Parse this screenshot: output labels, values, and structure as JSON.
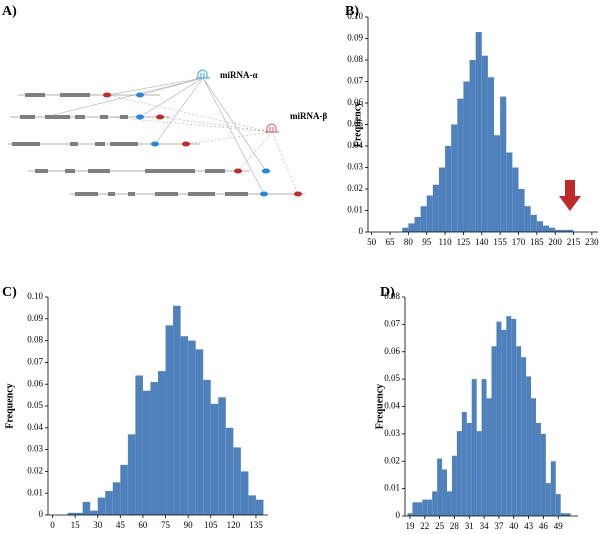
{
  "diagram": {
    "panel_label": "A)",
    "labels": [
      "miRNA-α",
      "miRNA-β"
    ]
  },
  "chart_data": [
    {
      "type": "histogram",
      "panel_label": "B)",
      "y_label": "Frequency",
      "color": "#4f81bd",
      "bins": [
        75,
        80,
        85,
        90,
        95,
        100,
        105,
        110,
        115,
        120,
        125,
        130,
        135,
        140,
        145,
        150,
        155,
        160,
        165,
        170,
        175,
        180,
        185,
        190,
        195,
        200,
        205,
        210,
        215
      ],
      "values": [
        0.002,
        0.004,
        0.007,
        0.012,
        0.017,
        0.022,
        0.03,
        0.04,
        0.05,
        0.062,
        0.07,
        0.08,
        0.093,
        0.082,
        0.072,
        0.045,
        0.063,
        0.037,
        0.03,
        0.02,
        0.012,
        0.008,
        0.005,
        0.003,
        0.002,
        0.001,
        0.001,
        0.001
      ],
      "xlim": [
        47,
        235
      ],
      "xticks": [
        50,
        65,
        80,
        95,
        110,
        125,
        140,
        155,
        170,
        185,
        200,
        215,
        230
      ],
      "ylim": [
        0,
        0.1
      ],
      "yticks": [
        0,
        0.01,
        0.02,
        0.03,
        0.04,
        0.05,
        0.06,
        0.07,
        0.08,
        0.09,
        {
          "value": 0.1,
          "label": "0.10"
        }
      ]
    },
    {
      "type": "histogram",
      "panel_label": "C)",
      "y_label": "Frequency",
      "color": "#4f81bd",
      "bins": [
        10,
        15,
        20,
        25,
        30,
        35,
        40,
        45,
        50,
        55,
        60,
        65,
        70,
        75,
        80,
        85,
        90,
        95,
        100,
        105,
        110,
        115,
        120,
        125,
        130,
        135,
        140
      ],
      "values": [
        0.001,
        0.001,
        0.006,
        0.002,
        0.008,
        0.011,
        0.015,
        0.023,
        0.037,
        0.064,
        0.057,
        0.061,
        0.066,
        0.087,
        0.096,
        0.082,
        0.08,
        0.076,
        0.062,
        0.051,
        0.054,
        0.04,
        0.031,
        0.02,
        0.009,
        0.007
      ],
      "xlim": [
        -3,
        143
      ],
      "xticks": [
        0,
        15,
        30,
        45,
        60,
        75,
        90,
        105,
        120,
        135
      ],
      "ylim": [
        0,
        0.1
      ],
      "yticks": [
        0,
        0.01,
        0.02,
        0.03,
        0.04,
        0.05,
        0.06,
        0.07,
        0.08,
        0.09,
        {
          "value": 0.1,
          "label": "0.10"
        }
      ]
    },
    {
      "type": "histogram",
      "panel_label": "D)",
      "y_label": "Frequency",
      "color": "#4f81bd",
      "bins": [
        18.5,
        19.5,
        20.5,
        21.5,
        22.5,
        23.5,
        24.5,
        25.5,
        26.5,
        27.5,
        28.5,
        29.5,
        30.5,
        31.5,
        32.5,
        33.5,
        34.5,
        35.5,
        36.5,
        37.5,
        38.5,
        39.5,
        40.5,
        41.5,
        42.5,
        43.5,
        44.5,
        45.5,
        46.5,
        47.5,
        48.5,
        49.5,
        50.5,
        51.5
      ],
      "values": [
        0.001,
        0.005,
        0.005,
        0.006,
        0.006,
        0.009,
        0.021,
        0.017,
        0.009,
        0.022,
        0.031,
        0.038,
        0.034,
        0.05,
        0.031,
        0.05,
        0.043,
        0.062,
        0.071,
        0.068,
        0.073,
        0.072,
        0.062,
        0.058,
        0.051,
        0.043,
        0.034,
        0.03,
        0.012,
        0.02,
        0.008,
        0.001,
        0.001
      ],
      "xlim": [
        18,
        53
      ],
      "xticks": [
        19,
        22,
        25,
        28,
        31,
        34,
        37,
        40,
        43,
        46,
        49
      ],
      "ylim": [
        0,
        0.08
      ],
      "yticks": [
        0,
        0.01,
        0.02,
        0.03,
        0.04,
        0.05,
        0.06,
        0.07,
        0.08
      ]
    }
  ]
}
